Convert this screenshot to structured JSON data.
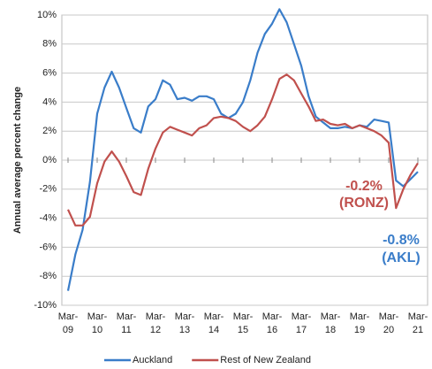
{
  "chart_data": {
    "type": "line",
    "y_label": "Annual average percent change",
    "categories": [
      "Mar-09",
      null,
      null,
      null,
      "Mar-10",
      null,
      null,
      null,
      "Mar-11",
      null,
      null,
      null,
      "Mar-12",
      null,
      null,
      null,
      "Mar-13",
      null,
      null,
      null,
      "Mar-14",
      null,
      null,
      null,
      "Mar-15",
      null,
      null,
      null,
      "Mar-16",
      null,
      null,
      null,
      "Mar-17",
      null,
      null,
      null,
      "Mar-18",
      null,
      null,
      null,
      "Mar-19",
      null,
      null,
      null,
      "Mar-20",
      null,
      null,
      null,
      "Mar-21"
    ],
    "series": [
      {
        "name": "Auckland",
        "color": "#3a7dc9",
        "values": [
          -9.0,
          -6.5,
          -4.8,
          -1.5,
          3.2,
          5.0,
          6.1,
          5.0,
          3.6,
          2.2,
          1.9,
          3.7,
          4.2,
          5.5,
          5.2,
          4.2,
          4.3,
          4.1,
          4.4,
          4.4,
          4.2,
          3.2,
          2.9,
          3.2,
          4.0,
          5.5,
          7.4,
          8.7,
          9.4,
          10.4,
          9.5,
          8.0,
          6.5,
          4.4,
          3.0,
          2.6,
          2.2,
          2.2,
          2.3,
          2.2,
          2.4,
          2.3,
          2.8,
          2.7,
          2.6,
          -1.4,
          -1.8,
          -1.3,
          -0.8
        ]
      },
      {
        "name": "Rest of New Zealand",
        "color": "#c0504d",
        "values": [
          -3.4,
          -4.5,
          -4.5,
          -3.9,
          -1.6,
          -0.1,
          0.6,
          -0.1,
          -1.1,
          -2.2,
          -2.4,
          -0.6,
          0.8,
          1.9,
          2.3,
          2.1,
          1.9,
          1.7,
          2.2,
          2.4,
          2.9,
          3.0,
          2.9,
          2.7,
          2.3,
          2.0,
          2.4,
          3.0,
          4.2,
          5.6,
          5.9,
          5.5,
          4.6,
          3.7,
          2.7,
          2.8,
          2.5,
          2.4,
          2.5,
          2.2,
          2.4,
          2.2,
          2.0,
          1.7,
          1.2,
          -3.3,
          -2.0,
          -1.0,
          -0.2
        ]
      }
    ],
    "annotations": [
      {
        "text": "-0.2%",
        "color": "#c0504d"
      },
      {
        "text": "(RONZ)",
        "color": "#c0504d"
      },
      {
        "text": "-0.8%",
        "color": "#3a7dc9"
      },
      {
        "text": "(AKL)",
        "color": "#3a7dc9"
      }
    ],
    "ylim": [
      -10,
      10
    ],
    "yticks": [
      {
        "value": -10,
        "label": "-10%"
      },
      {
        "value": -8,
        "label": "-8%"
      },
      {
        "value": -6,
        "label": "-6%"
      },
      {
        "value": -4,
        "label": "-4%"
      },
      {
        "value": -2,
        "label": "-2%"
      },
      {
        "value": 0,
        "label": "0%"
      },
      {
        "value": 2,
        "label": "2%"
      },
      {
        "value": 4,
        "label": "4%"
      },
      {
        "value": 6,
        "label": "6%"
      },
      {
        "value": 8,
        "label": "8%"
      },
      {
        "value": 10,
        "label": "10%"
      }
    ],
    "grid": true,
    "legend": "bottom"
  }
}
